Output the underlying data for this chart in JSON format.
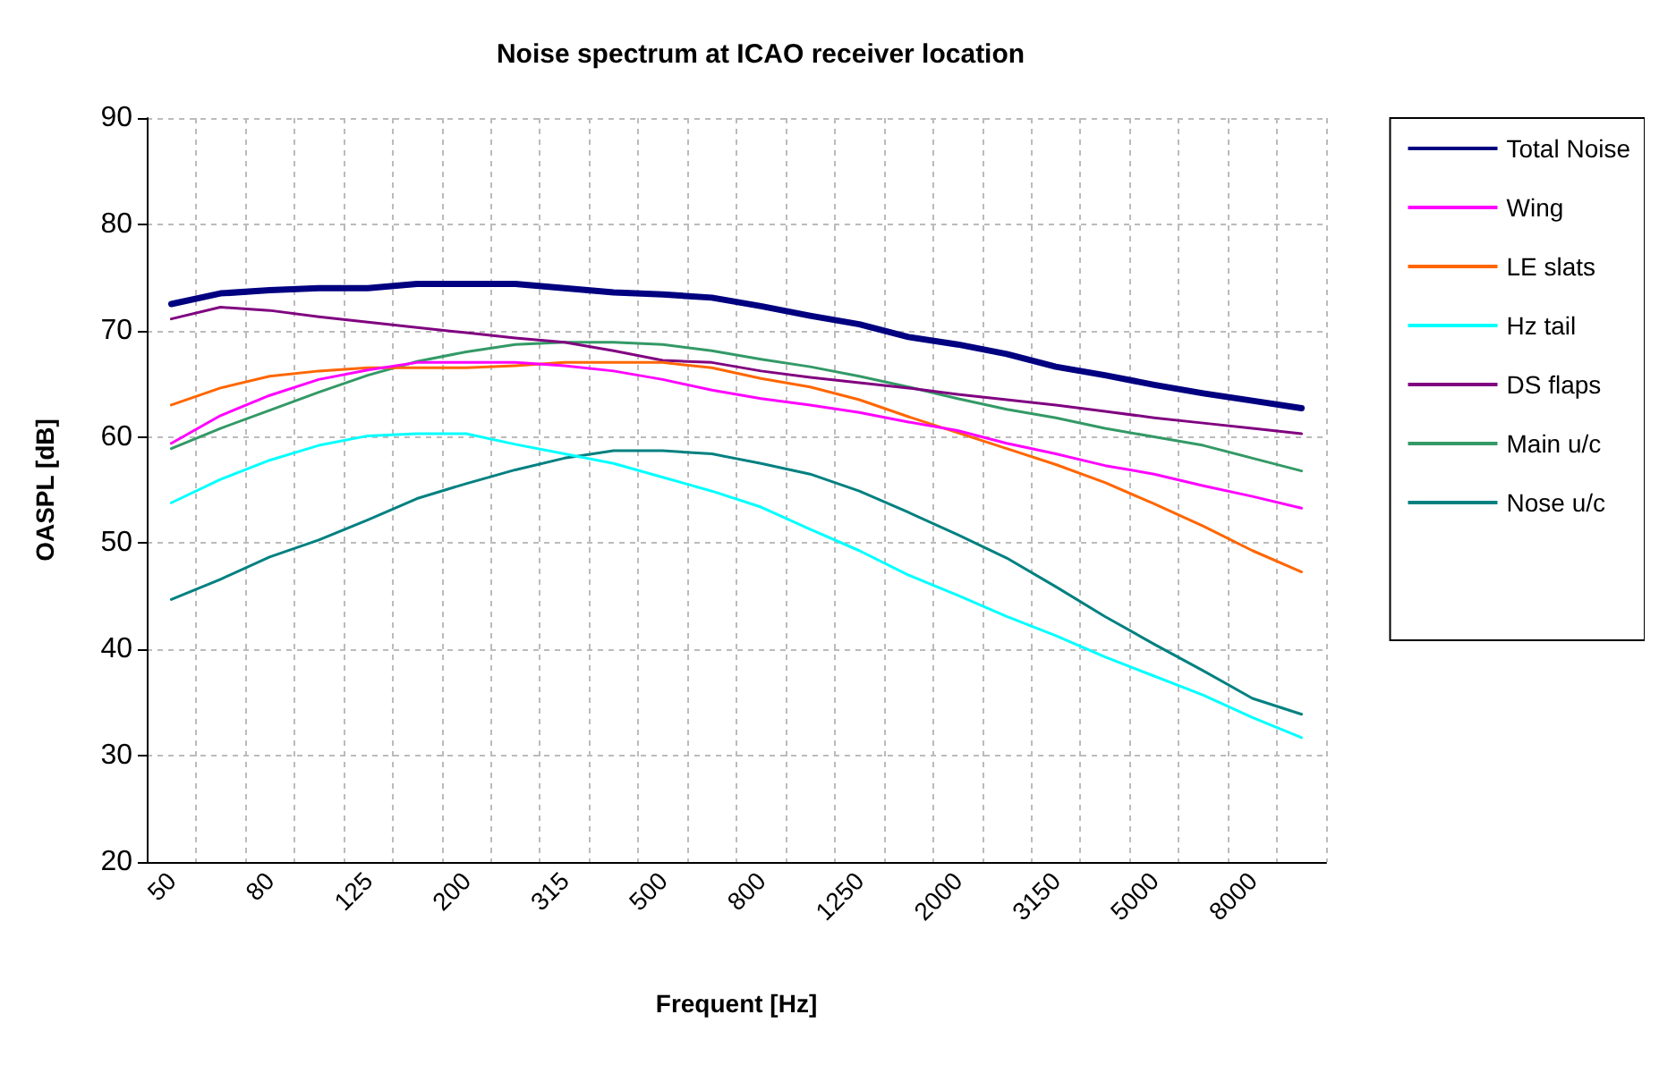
{
  "chart_data": {
    "type": "line",
    "title": "Noise spectrum at ICAO receiver location",
    "xlabel": "Frequent [Hz]",
    "ylabel": "OASPL [dB]",
    "categories": [
      "50",
      null,
      "80",
      null,
      "125",
      null,
      "200",
      null,
      "315",
      null,
      "500",
      null,
      "800",
      null,
      "1250",
      null,
      "2000",
      null,
      "3150",
      null,
      "5000",
      null,
      "8000",
      null
    ],
    "ylim": [
      20,
      90
    ],
    "yticks": [
      20,
      30,
      40,
      50,
      60,
      70,
      80,
      90
    ],
    "grid": true,
    "legend": "right",
    "marker": "none",
    "line_style": "solid",
    "series": [
      {
        "name": "Total Noise",
        "color": "#000080",
        "values": [
          72.5,
          73.5,
          73.8,
          74.0,
          74.0,
          74.4,
          74.4,
          74.4,
          74.0,
          73.6,
          73.4,
          73.1,
          72.3,
          71.4,
          70.6,
          69.4,
          68.7,
          67.8,
          66.6,
          65.8,
          64.9,
          64.1,
          63.4,
          62.7
        ]
      },
      {
        "name": "Wing",
        "color": "#ff00ff",
        "values": [
          59.4,
          62.0,
          63.9,
          65.4,
          66.3,
          67.0,
          67.0,
          67.0,
          66.7,
          66.2,
          65.4,
          64.4,
          63.6,
          63.0,
          62.3,
          61.4,
          60.6,
          59.4,
          58.4,
          57.3,
          56.5,
          55.4,
          54.4,
          53.3
        ]
      },
      {
        "name": "LE slats",
        "color": "#ff6600",
        "values": [
          63.0,
          64.6,
          65.7,
          66.2,
          66.5,
          66.5,
          66.5,
          66.7,
          67.0,
          67.0,
          67.0,
          66.5,
          65.5,
          64.7,
          63.5,
          61.9,
          60.4,
          58.9,
          57.4,
          55.7,
          53.7,
          51.6,
          49.3,
          47.3
        ]
      },
      {
        "name": "Hz tail",
        "color": "#00ffff",
        "values": [
          53.8,
          56.0,
          57.8,
          59.2,
          60.1,
          60.3,
          60.3,
          59.3,
          58.4,
          57.5,
          56.2,
          54.9,
          53.4,
          51.3,
          49.3,
          47.0,
          45.1,
          43.1,
          41.3,
          39.3,
          37.5,
          35.7,
          33.6,
          31.7
        ]
      },
      {
        "name": "DS flaps",
        "color": "#800080",
        "values": [
          71.1,
          72.2,
          71.9,
          71.3,
          70.8,
          70.3,
          69.8,
          69.3,
          68.9,
          68.1,
          67.2,
          67.0,
          66.2,
          65.6,
          65.1,
          64.6,
          64.0,
          63.5,
          63.0,
          62.4,
          61.8,
          61.3,
          60.8,
          60.3
        ]
      },
      {
        "name": "Main u/c",
        "color": "#339966",
        "values": [
          58.9,
          60.8,
          62.5,
          64.2,
          65.8,
          67.1,
          68.0,
          68.7,
          68.9,
          68.9,
          68.7,
          68.1,
          67.3,
          66.6,
          65.7,
          64.7,
          63.6,
          62.6,
          61.8,
          60.8,
          60.0,
          59.2,
          58.0,
          56.8
        ]
      },
      {
        "name": "Nose u/c",
        "color": "#008080",
        "values": [
          44.7,
          46.6,
          48.7,
          50.3,
          52.2,
          54.2,
          55.6,
          56.9,
          58.0,
          58.7,
          58.7,
          58.4,
          57.5,
          56.5,
          54.9,
          52.9,
          50.8,
          48.6,
          45.9,
          43.1,
          40.5,
          38.0,
          35.4,
          33.9
        ]
      }
    ]
  }
}
